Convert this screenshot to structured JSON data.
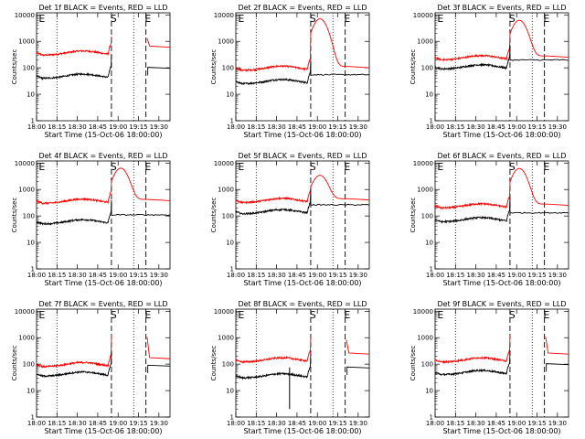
{
  "colors": {
    "events": "#000000",
    "lld": "#ff0000",
    "markers": "#000000"
  },
  "chart_data": {
    "type": "line",
    "scale": "log",
    "ylim": [
      1,
      12000
    ],
    "xlim_minutes": [
      0,
      36
    ],
    "x_ticks": [
      "18:00",
      "18:15",
      "18:30",
      "18:45",
      "19:00",
      "19:15",
      "19:30"
    ],
    "y_ticks": [
      "1",
      "10",
      "100",
      "1000",
      "10000"
    ],
    "ylabel": "Counts/sec",
    "xlabel": "Start Time (15-Oct-06 18:00:00)",
    "panels": [
      {
        "title": "Det 1f BLACK = Events, RED = LLD",
        "markers": [
          "E",
          "S",
          "E"
        ],
        "black_base": 40,
        "red_base": 300,
        "peak": 1100,
        "gaps": true
      },
      {
        "title": "Det 2f BLACK = Events, RED = LLD",
        "markers": [
          "E",
          "S",
          "E"
        ],
        "black_base": 25,
        "red_base": 80,
        "peak": 7000,
        "gaps": false
      },
      {
        "title": "Det 3f BLACK = Events, RED = LLD",
        "markers": [
          "E",
          "S",
          "E"
        ],
        "black_base": 90,
        "red_base": 200,
        "peak": 6000,
        "gaps": false
      },
      {
        "title": "Det 4f BLACK = Events, RED = LLD",
        "markers": [
          "E",
          "S",
          "E"
        ],
        "black_base": 50,
        "red_base": 300,
        "peak": 6000,
        "gaps": false
      },
      {
        "title": "Det 5f BLACK = Events, RED = LLD",
        "markers": [
          "E",
          "S",
          "E"
        ],
        "black_base": 120,
        "red_base": 320,
        "peak": 3000,
        "gaps": false
      },
      {
        "title": "Det 6f BLACK = Events, RED = LLD",
        "markers": [
          "E",
          "S",
          "E"
        ],
        "black_base": 60,
        "red_base": 200,
        "peak": 6000,
        "gaps": false
      },
      {
        "title": "Det 7f BLACK = Events, RED = LLD",
        "markers": [
          "E",
          "S",
          "E"
        ],
        "black_base": 35,
        "red_base": 80,
        "peak": 900,
        "gaps": true
      },
      {
        "title": "Det 8f BLACK = Events, RED = LLD",
        "markers": [
          "E",
          "S",
          "E"
        ],
        "black_base": 30,
        "red_base": 120,
        "peak": 700,
        "gaps": true
      },
      {
        "title": "Det 9f BLACK = Events, RED = LLD",
        "markers": [
          "E",
          "S",
          "E"
        ],
        "black_base": 40,
        "red_base": 120,
        "peak": 900,
        "gaps": true
      }
    ]
  }
}
